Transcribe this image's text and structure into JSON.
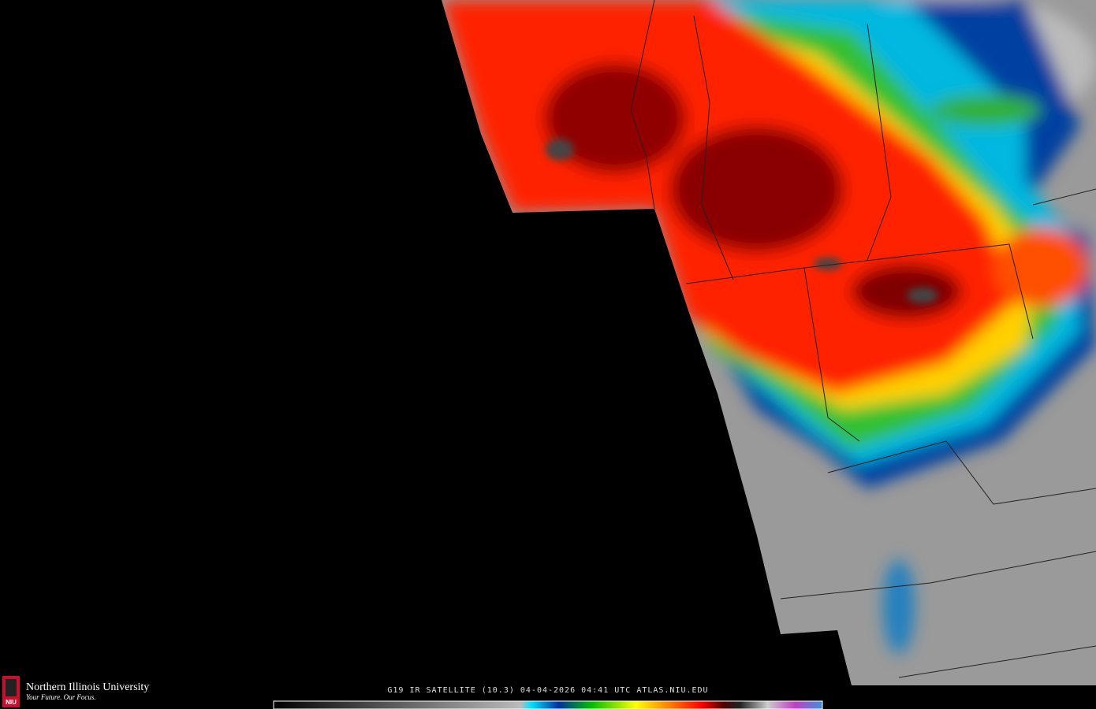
{
  "branding": {
    "name": "Northern Illinois University",
    "tagline": "Your Future. Our Focus.",
    "logo_text": "NIU"
  },
  "caption": "G19 IR SATELLITE (10.3) 04-04-2026 04:41 UTC  ATLAS.NIU.EDU"
}
